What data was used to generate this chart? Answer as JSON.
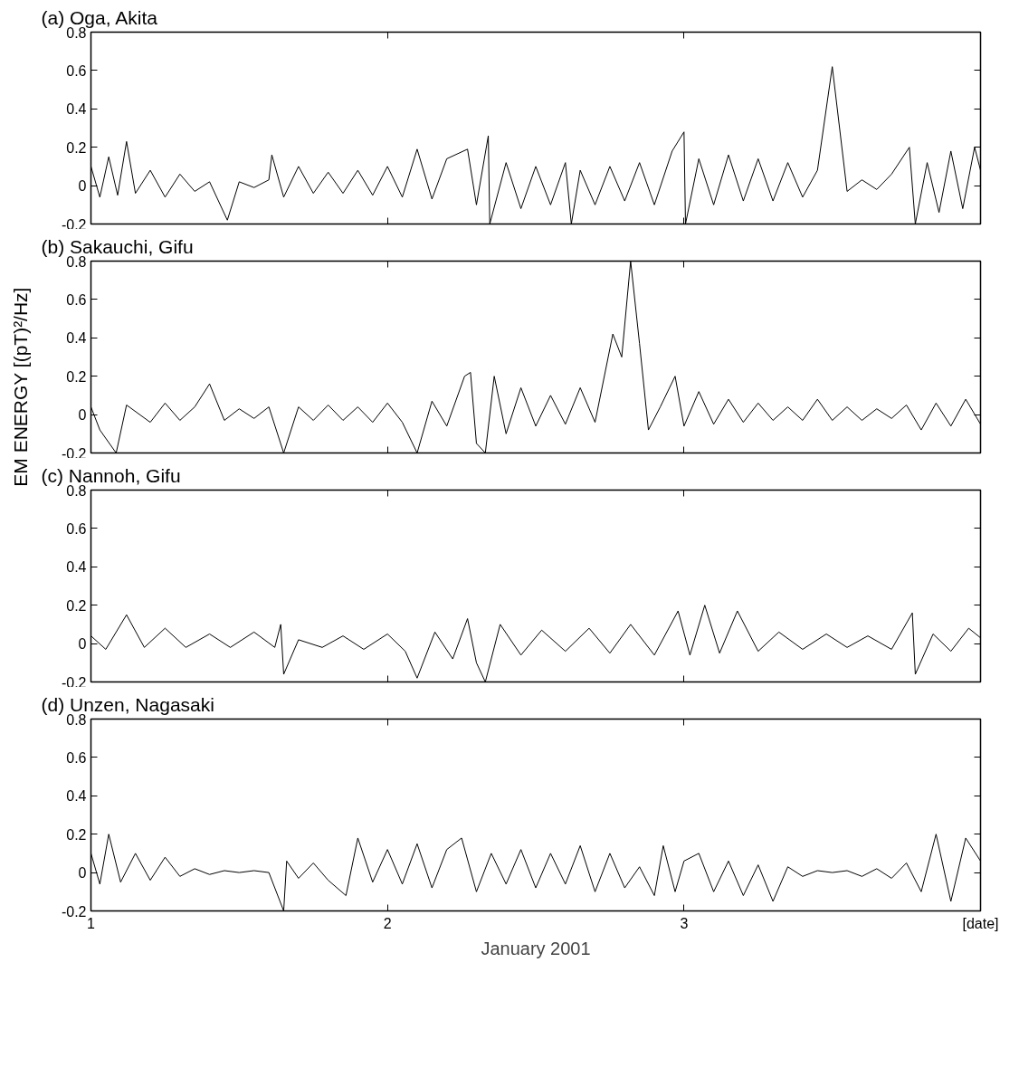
{
  "chart_data": [
    {
      "type": "line",
      "title": "(a) Oga, Akita",
      "color": "#000000",
      "xlim": [
        1,
        4
      ],
      "ylim": [
        -0.2,
        0.8
      ],
      "xticks": [
        1,
        2,
        3
      ],
      "yticks": [
        -0.2,
        0,
        0.2,
        0.4,
        0.6,
        0.8
      ],
      "tick_labels": "y",
      "x": [
        1,
        1.03,
        1.06,
        1.09,
        1.12,
        1.15,
        1.2,
        1.25,
        1.3,
        1.35,
        1.4,
        1.46,
        1.5,
        1.55,
        1.6,
        1.61,
        1.65,
        1.7,
        1.75,
        1.8,
        1.85,
        1.9,
        1.95,
        2,
        2.05,
        2.1,
        2.15,
        2.2,
        2.27,
        2.3,
        2.34,
        2.345,
        2.4,
        2.45,
        2.5,
        2.55,
        2.6,
        2.62,
        2.65,
        2.7,
        2.75,
        2.8,
        2.85,
        2.9,
        2.96,
        3,
        3.005,
        3.05,
        3.1,
        3.15,
        3.2,
        3.25,
        3.3,
        3.35,
        3.4,
        3.45,
        3.5,
        3.55,
        3.6,
        3.65,
        3.7,
        3.76,
        3.78,
        3.82,
        3.86,
        3.9,
        3.94,
        3.98,
        4
      ],
      "values": [
        0.1,
        -0.06,
        0.15,
        -0.05,
        0.23,
        -0.04,
        0.08,
        -0.06,
        0.06,
        -0.03,
        0.02,
        -0.18,
        0.02,
        -0.01,
        0.03,
        0.16,
        -0.06,
        0.1,
        -0.04,
        0.07,
        -0.04,
        0.08,
        -0.05,
        0.1,
        -0.06,
        0.19,
        -0.07,
        0.14,
        0.19,
        -0.1,
        0.26,
        -0.2,
        0.12,
        -0.12,
        0.1,
        -0.1,
        0.12,
        -0.2,
        0.08,
        -0.1,
        0.1,
        -0.08,
        0.12,
        -0.1,
        0.18,
        0.28,
        -0.2,
        0.14,
        -0.1,
        0.16,
        -0.08,
        0.14,
        -0.08,
        0.12,
        -0.06,
        0.08,
        0.62,
        -0.03,
        0.03,
        -0.02,
        0.06,
        0.2,
        -0.2,
        0.12,
        -0.14,
        0.18,
        -0.12,
        0.2,
        0.08
      ]
    },
    {
      "type": "line",
      "title": "(b) Sakauchi, Gifu",
      "ylabel": "EM ENERGY  [(pT)²/Hz]",
      "color": "#000000",
      "xlim": [
        1,
        4
      ],
      "ylim": [
        -0.2,
        0.8
      ],
      "xticks": [
        1,
        2,
        3
      ],
      "yticks": [
        -0.2,
        0,
        0.2,
        0.4,
        0.6,
        0.8
      ],
      "tick_labels": "y",
      "x": [
        1,
        1.03,
        1.085,
        1.12,
        1.2,
        1.25,
        1.3,
        1.35,
        1.4,
        1.45,
        1.5,
        1.55,
        1.6,
        1.65,
        1.7,
        1.75,
        1.8,
        1.85,
        1.9,
        1.95,
        2,
        2.05,
        2.1,
        2.15,
        2.2,
        2.26,
        2.28,
        2.3,
        2.33,
        2.36,
        2.4,
        2.45,
        2.5,
        2.55,
        2.6,
        2.65,
        2.7,
        2.76,
        2.79,
        2.82,
        2.85,
        2.88,
        2.92,
        2.97,
        3,
        3.05,
        3.1,
        3.15,
        3.2,
        3.25,
        3.3,
        3.35,
        3.4,
        3.45,
        3.5,
        3.55,
        3.6,
        3.65,
        3.7,
        3.75,
        3.8,
        3.85,
        3.9,
        3.95,
        4
      ],
      "values": [
        0.04,
        -0.08,
        -0.2,
        0.05,
        -0.04,
        0.06,
        -0.03,
        0.04,
        0.16,
        -0.03,
        0.03,
        -0.02,
        0.04,
        -0.2,
        0.04,
        -0.03,
        0.05,
        -0.03,
        0.04,
        -0.04,
        0.06,
        -0.04,
        -0.2,
        0.07,
        -0.06,
        0.2,
        0.22,
        -0.15,
        -0.2,
        0.2,
        -0.1,
        0.14,
        -0.06,
        0.1,
        -0.05,
        0.14,
        -0.04,
        0.42,
        0.3,
        0.8,
        0.37,
        -0.08,
        0.04,
        0.2,
        -0.06,
        0.12,
        -0.05,
        0.08,
        -0.04,
        0.06,
        -0.03,
        0.04,
        -0.03,
        0.08,
        -0.03,
        0.04,
        -0.03,
        0.03,
        -0.02,
        0.05,
        -0.08,
        0.06,
        -0.06,
        0.08,
        -0.05
      ]
    },
    {
      "type": "line",
      "title": "(c) Nannoh, Gifu",
      "color": "#000000",
      "xlim": [
        1,
        4
      ],
      "ylim": [
        -0.2,
        0.8
      ],
      "xticks": [
        1,
        2,
        3
      ],
      "yticks": [
        -0.2,
        0,
        0.2,
        0.4,
        0.6,
        0.8
      ],
      "tick_labels": "y",
      "x": [
        1,
        1.05,
        1.12,
        1.18,
        1.25,
        1.32,
        1.4,
        1.47,
        1.55,
        1.62,
        1.64,
        1.65,
        1.7,
        1.78,
        1.85,
        1.92,
        2,
        2.06,
        2.1,
        2.16,
        2.22,
        2.27,
        2.3,
        2.33,
        2.38,
        2.45,
        2.52,
        2.6,
        2.68,
        2.75,
        2.82,
        2.9,
        2.98,
        3.02,
        3.07,
        3.12,
        3.18,
        3.25,
        3.32,
        3.4,
        3.48,
        3.55,
        3.62,
        3.7,
        3.77,
        3.78,
        3.84,
        3.9,
        3.96,
        4
      ],
      "values": [
        0.04,
        -0.03,
        0.15,
        -0.02,
        0.08,
        -0.02,
        0.05,
        -0.02,
        0.06,
        -0.02,
        0.1,
        -0.16,
        0.02,
        -0.02,
        0.04,
        -0.03,
        0.05,
        -0.04,
        -0.18,
        0.06,
        -0.08,
        0.13,
        -0.1,
        -0.2,
        0.1,
        -0.06,
        0.07,
        -0.04,
        0.08,
        -0.05,
        0.1,
        -0.06,
        0.17,
        -0.06,
        0.2,
        -0.05,
        0.17,
        -0.04,
        0.06,
        -0.03,
        0.05,
        -0.02,
        0.04,
        -0.03,
        0.16,
        -0.16,
        0.05,
        -0.04,
        0.08,
        0.03
      ]
    },
    {
      "type": "line",
      "title": "(d) Unzen, Nagasaki",
      "xlabel": "January 2001",
      "color": "#000000",
      "xlim": [
        1,
        4
      ],
      "ylim": [
        -0.2,
        0.8
      ],
      "xticks": [
        1,
        2,
        3,
        {
          "value": 4,
          "label": "[date]"
        }
      ],
      "yticks": [
        -0.2,
        0,
        0.2,
        0.4,
        0.6,
        0.8
      ],
      "x": [
        1,
        1.03,
        1.06,
        1.1,
        1.15,
        1.2,
        1.25,
        1.3,
        1.35,
        1.4,
        1.45,
        1.5,
        1.55,
        1.6,
        1.65,
        1.66,
        1.7,
        1.75,
        1.8,
        1.86,
        1.9,
        1.95,
        2,
        2.05,
        2.1,
        2.15,
        2.2,
        2.25,
        2.3,
        2.35,
        2.4,
        2.45,
        2.5,
        2.55,
        2.6,
        2.65,
        2.7,
        2.75,
        2.8,
        2.85,
        2.9,
        2.93,
        2.97,
        3,
        3.05,
        3.1,
        3.15,
        3.2,
        3.25,
        3.3,
        3.35,
        3.4,
        3.45,
        3.5,
        3.55,
        3.6,
        3.65,
        3.7,
        3.75,
        3.8,
        3.85,
        3.9,
        3.95,
        4
      ],
      "values": [
        0.1,
        -0.06,
        0.2,
        -0.05,
        0.1,
        -0.04,
        0.08,
        -0.02,
        0.02,
        -0.01,
        0.01,
        0,
        0.01,
        0,
        -0.2,
        0.06,
        -0.03,
        0.05,
        -0.04,
        -0.12,
        0.18,
        -0.05,
        0.12,
        -0.06,
        0.15,
        -0.08,
        0.12,
        0.18,
        -0.1,
        0.1,
        -0.06,
        0.12,
        -0.08,
        0.1,
        -0.06,
        0.14,
        -0.1,
        0.1,
        -0.08,
        0.03,
        -0.12,
        0.14,
        -0.1,
        0.06,
        0.1,
        -0.1,
        0.06,
        -0.12,
        0.04,
        -0.15,
        0.03,
        -0.02,
        0.01,
        0,
        0.01,
        -0.02,
        0.02,
        -0.03,
        0.05,
        -0.1,
        0.2,
        -0.15,
        0.18,
        0.06
      ]
    }
  ]
}
